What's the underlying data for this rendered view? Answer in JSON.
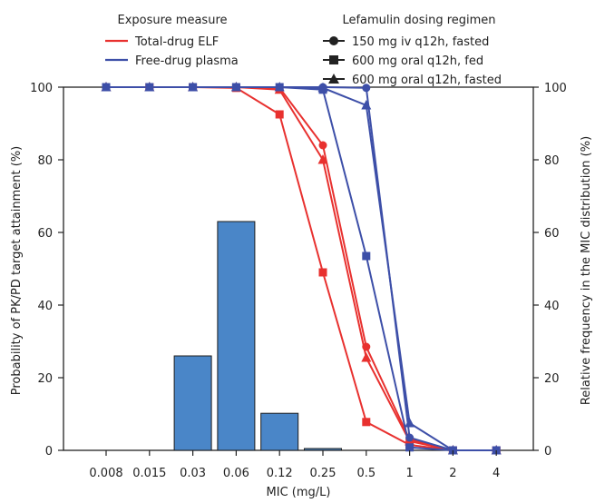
{
  "chart_data": {
    "type": "bar+line",
    "categories": [
      "0.008",
      "0.015",
      "0.03",
      "0.06",
      "0.12",
      "0.25",
      "0.5",
      "1",
      "2",
      "4"
    ],
    "xlabel": "MIC (mg/L)",
    "ylabel_left": "Probability of PK/PD target attainment (%)",
    "ylabel_right": "Relative frequency in the MIC distribution (%)",
    "ylim_left": [
      0,
      100
    ],
    "ylim_right": [
      0,
      100
    ],
    "yticks": [
      0,
      20,
      40,
      60,
      80,
      100
    ],
    "bars": {
      "color": "#4a86c8",
      "values": [
        0,
        0,
        26,
        63,
        10.2,
        0.5,
        0,
        0,
        0,
        0
      ]
    },
    "legend_exposure": {
      "title": "Exposure measure",
      "items": [
        {
          "label": "Total-drug ELF",
          "color": "#e8312f"
        },
        {
          "label": "Free-drug plasma",
          "color": "#3d4fa8"
        }
      ]
    },
    "legend_regimen": {
      "title": "Lefamulin dosing regimen",
      "items": [
        {
          "label": "150 mg iv q12h, fasted",
          "marker": "circle"
        },
        {
          "label": "600 mg oral q12h, fed",
          "marker": "square"
        },
        {
          "label": "600 mg oral q12h, fasted",
          "marker": "triangle"
        }
      ]
    },
    "series": [
      {
        "exposure": "Total-drug ELF",
        "marker": "circle",
        "color": "#e8312f",
        "values": [
          100,
          100,
          100,
          100,
          99.8,
          84,
          28.5,
          3,
          0,
          0
        ]
      },
      {
        "exposure": "Total-drug ELF",
        "marker": "square",
        "color": "#e8312f",
        "values": [
          100,
          100,
          100,
          99.8,
          92.5,
          49,
          7.8,
          1.5,
          0,
          0
        ]
      },
      {
        "exposure": "Total-drug ELF",
        "marker": "triangle",
        "color": "#e8312f",
        "values": [
          100,
          100,
          100,
          100,
          99.3,
          80,
          25.5,
          2.5,
          0,
          0
        ]
      },
      {
        "exposure": "Free-drug plasma",
        "marker": "circle",
        "color": "#3d4fa8",
        "values": [
          100,
          100,
          100,
          100,
          100,
          100,
          99.8,
          3.5,
          0,
          0
        ]
      },
      {
        "exposure": "Free-drug plasma",
        "marker": "square",
        "color": "#3d4fa8",
        "values": [
          100,
          100,
          100,
          100,
          100,
          99.3,
          53.5,
          0.8,
          0,
          0
        ]
      },
      {
        "exposure": "Free-drug plasma",
        "marker": "triangle",
        "color": "#3d4fa8",
        "values": [
          100,
          100,
          100,
          100,
          100,
          99.8,
          95,
          7.5,
          0,
          0
        ]
      }
    ]
  }
}
